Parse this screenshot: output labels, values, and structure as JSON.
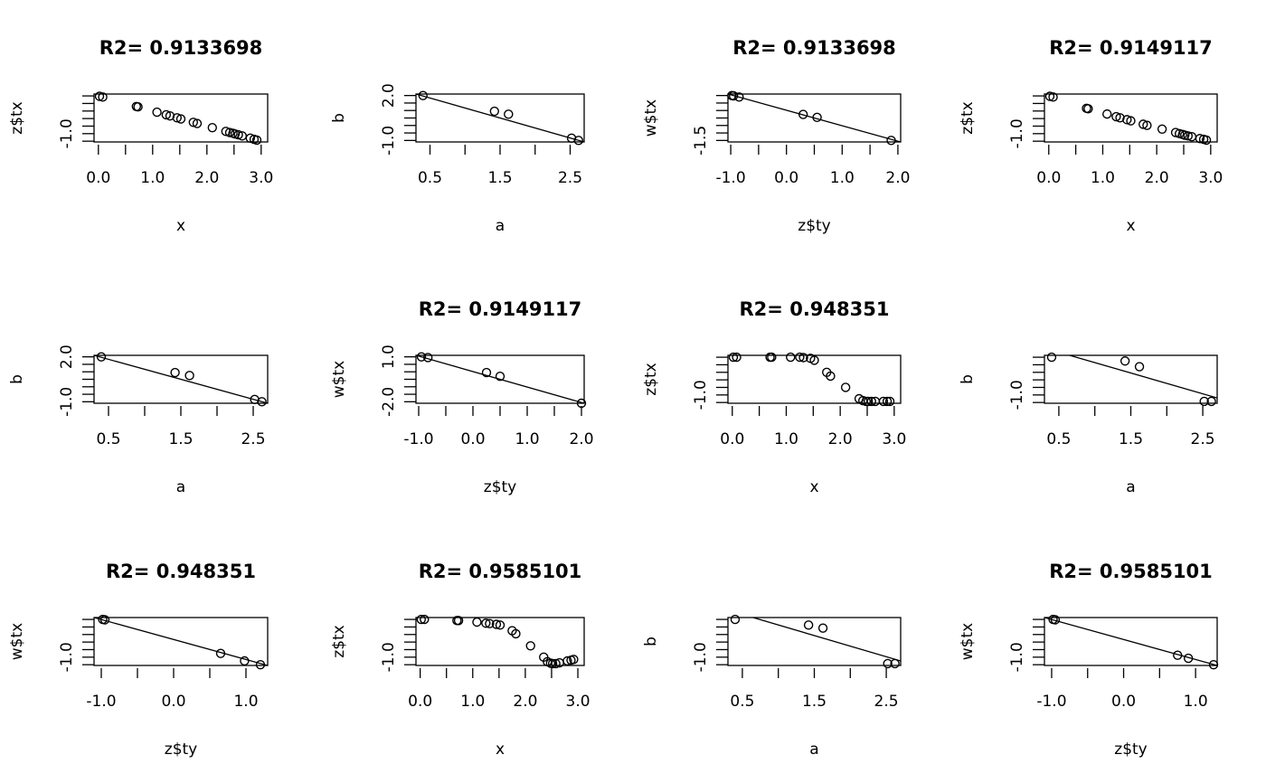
{
  "chart_data": [
    {
      "type": "scatter",
      "title": "R2= 0.9133698",
      "xlabel": "x",
      "ylabel": "z$tx",
      "xlim": [
        -0.08,
        3.12
      ],
      "ylim": [
        -1.22,
        0.05
      ],
      "xticks": [
        0,
        0.5,
        1,
        1.5,
        2,
        2.5,
        3
      ],
      "xtick_labels": {
        "0": "0.0",
        "1": "1.0",
        "2": "2.0",
        "3": "3.0"
      },
      "yticks": [
        -1.2,
        -1.0,
        -0.8,
        -0.6,
        -0.4,
        -0.2,
        0
      ],
      "ytick_labels": {
        "-1": "-1.0"
      },
      "x": [
        0.02,
        0.08,
        0.7,
        0.73,
        1.08,
        1.25,
        1.32,
        1.45,
        1.52,
        1.75,
        1.82,
        2.1,
        2.35,
        2.42,
        2.48,
        2.52,
        2.58,
        2.65,
        2.8,
        2.87,
        2.92
      ],
      "y": [
        -0.01,
        -0.03,
        -0.28,
        -0.29,
        -0.43,
        -0.5,
        -0.53,
        -0.58,
        -0.61,
        -0.7,
        -0.73,
        -0.84,
        -0.94,
        -0.97,
        -0.99,
        -1.01,
        -1.03,
        -1.06,
        -1.12,
        -1.15,
        -1.17
      ],
      "fit_line": null
    },
    {
      "type": "scatter",
      "title": "",
      "xlabel": "a",
      "ylabel": "b",
      "xlim": [
        0.3,
        2.7
      ],
      "ylim": [
        -1.1,
        2.1
      ],
      "xticks": [
        0.5,
        1,
        1.5,
        2,
        2.5
      ],
      "xtick_labels": {
        "0.5": "0.5",
        "1.5": "1.5",
        "2.5": "2.5"
      },
      "yticks": [
        -1,
        -0.5,
        0,
        0.5,
        1,
        1.5,
        2
      ],
      "ytick_labels": {
        "2": "2.0",
        "-1": "-1.0"
      },
      "x": [
        0.4,
        1.42,
        1.62,
        2.52,
        2.62
      ],
      "y": [
        2.0,
        0.95,
        0.75,
        -0.85,
        -1.0
      ],
      "fit_line": [
        [
          0.3,
          2.1
        ],
        [
          2.7,
          -1.1
        ]
      ]
    },
    {
      "type": "scatter",
      "title": "R2= 0.9133698",
      "xlabel": "z$ty",
      "ylabel": "w$tx",
      "xlim": [
        -1.05,
        2.05
      ],
      "ylim": [
        -1.55,
        0.05
      ],
      "xticks": [
        -1,
        -0.5,
        0,
        0.5,
        1,
        1.5,
        2
      ],
      "xtick_labels": {
        "-1": "-1.0",
        "0": "0.0",
        "1": "1.0",
        "2": "2.0"
      },
      "yticks": [
        -1.5,
        -1.25,
        -1,
        -0.75,
        -0.5,
        -0.25,
        0
      ],
      "ytick_labels": {
        "-1.5": "-1.5"
      },
      "x": [
        -0.98,
        -0.95,
        -0.85,
        0.3,
        0.55,
        1.88
      ],
      "y": [
        0.0,
        -0.01,
        -0.05,
        -0.63,
        -0.73,
        -1.5
      ],
      "fit_line": [
        [
          -1.05,
          0.05
        ],
        [
          2.05,
          -1.55
        ]
      ]
    },
    {
      "type": "scatter",
      "title": "R2= 0.9149117",
      "xlabel": "x",
      "ylabel": "z$tx",
      "xlim": [
        -0.08,
        3.12
      ],
      "ylim": [
        -1.22,
        0.05
      ],
      "xticks": [
        0,
        0.5,
        1,
        1.5,
        2,
        2.5,
        3
      ],
      "xtick_labels": {
        "0": "0.0",
        "1": "1.0",
        "2": "2.0",
        "3": "3.0"
      },
      "yticks": [
        -1.2,
        -1.0,
        -0.8,
        -0.6,
        -0.4,
        -0.2,
        0
      ],
      "ytick_labels": {
        "-1": "-1.0"
      },
      "x": [
        0.02,
        0.08,
        0.7,
        0.73,
        1.08,
        1.25,
        1.32,
        1.45,
        1.52,
        1.75,
        1.82,
        2.1,
        2.35,
        2.42,
        2.48,
        2.52,
        2.58,
        2.65,
        2.8,
        2.87,
        2.92
      ],
      "y": [
        -0.01,
        -0.03,
        -0.33,
        -0.34,
        -0.48,
        -0.55,
        -0.58,
        -0.63,
        -0.66,
        -0.75,
        -0.78,
        -0.88,
        -0.97,
        -1.0,
        -1.02,
        -1.04,
        -1.06,
        -1.08,
        -1.13,
        -1.15,
        -1.17
      ],
      "fit_line": null
    },
    {
      "type": "scatter",
      "title": "",
      "xlabel": "a",
      "ylabel": "b",
      "xlim": [
        0.3,
        2.7
      ],
      "ylim": [
        -1.1,
        2.1
      ],
      "xticks": [
        0.5,
        1,
        1.5,
        2,
        2.5
      ],
      "xtick_labels": {
        "0.5": "0.5",
        "1.5": "1.5",
        "2.5": "2.5"
      },
      "yticks": [
        -1,
        -0.5,
        0,
        0.5,
        1,
        1.5,
        2
      ],
      "ytick_labels": {
        "2": "2.0",
        "-1": "-1.0"
      },
      "x": [
        0.4,
        1.42,
        1.62,
        2.52,
        2.62
      ],
      "y": [
        2.0,
        0.95,
        0.75,
        -0.85,
        -1.0
      ],
      "fit_line": [
        [
          0.3,
          2.1
        ],
        [
          2.7,
          -1.1
        ]
      ]
    },
    {
      "type": "scatter",
      "title": "R2= 0.9149117",
      "xlabel": "z$ty",
      "ylabel": "w$tx",
      "xlim": [
        -1.05,
        2.05
      ],
      "ylim": [
        -2.1,
        1.1
      ],
      "xticks": [
        -1,
        -0.5,
        0,
        0.5,
        1,
        1.5,
        2
      ],
      "xtick_labels": {
        "-1": "-1.0",
        "0": "0.0",
        "1": "1.0",
        "2": "2.0"
      },
      "yticks": [
        -2,
        -1.5,
        -1,
        -0.5,
        0,
        0.5,
        1
      ],
      "ytick_labels": {
        "1": "1.0",
        "-2": "-2.0"
      },
      "x": [
        -0.95,
        -0.83,
        0.25,
        0.5,
        2.0
      ],
      "y": [
        1.0,
        0.95,
        -0.05,
        -0.3,
        -2.1
      ],
      "fit_line": [
        [
          -1.05,
          1.1
        ],
        [
          2.05,
          -2.1
        ]
      ]
    },
    {
      "type": "scatter",
      "title": "R2= 0.948351",
      "xlabel": "x",
      "ylabel": "z$tx",
      "xlim": [
        -0.08,
        3.12
      ],
      "ylim": [
        -1.22,
        0.05
      ],
      "xticks": [
        0,
        0.5,
        1,
        1.5,
        2,
        2.5,
        3
      ],
      "xtick_labels": {
        "0": "0.0",
        "1": "1.0",
        "2": "2.0",
        "3": "3.0"
      },
      "yticks": [
        -1.2,
        -1.0,
        -0.8,
        -0.6,
        -0.4,
        -0.2,
        0
      ],
      "ytick_labels": {
        "-1": "-1.0"
      },
      "x": [
        0.02,
        0.08,
        0.7,
        0.73,
        1.08,
        1.25,
        1.32,
        1.45,
        1.52,
        1.75,
        1.82,
        2.1,
        2.35,
        2.42,
        2.48,
        2.52,
        2.58,
        2.65,
        2.8,
        2.87,
        2.92
      ],
      "y": [
        0,
        0,
        0,
        0,
        0,
        0,
        -0.01,
        -0.03,
        -0.08,
        -0.4,
        -0.5,
        -0.8,
        -1.1,
        -1.15,
        -1.17,
        -1.17,
        -1.17,
        -1.17,
        -1.17,
        -1.17,
        -1.17
      ],
      "fit_line": null
    },
    {
      "type": "scatter",
      "title": "",
      "xlabel": "a",
      "ylabel": "b",
      "xlim": [
        0.3,
        2.7
      ],
      "ylim": [
        -1.22,
        0.05
      ],
      "xticks": [
        0.5,
        1,
        1.5,
        2,
        2.5
      ],
      "xtick_labels": {
        "0.5": "0.5",
        "1.5": "1.5",
        "2.5": "2.5"
      },
      "yticks": [
        -1.2,
        -1.0,
        -0.8,
        -0.6,
        -0.4,
        -0.2,
        0
      ],
      "ytick_labels": {
        "-1": "-1.0"
      },
      "x": [
        0.4,
        1.42,
        1.62,
        2.52,
        2.62
      ],
      "y": [
        0,
        -0.1,
        -0.25,
        -1.17,
        -1.17
      ],
      "fit_line": [
        [
          0.65,
          0.05
        ],
        [
          2.7,
          -1.08
        ]
      ]
    },
    {
      "type": "scatter",
      "title": "R2= 0.948351",
      "xlabel": "z$ty",
      "ylabel": "w$tx",
      "xlim": [
        -1.1,
        1.3
      ],
      "ylim": [
        -1.22,
        0.05
      ],
      "xticks": [
        -1,
        -0.5,
        0,
        0.5,
        1
      ],
      "xtick_labels": {
        "-1": "-1.0",
        "0": "0.0",
        "1": "1.0"
      },
      "yticks": [
        -1.2,
        -1.0,
        -0.8,
        -0.6,
        -0.4,
        -0.2,
        0
      ],
      "ytick_labels": {
        "-1": "-1.0"
      },
      "x": [
        -0.98,
        -0.95,
        0.65,
        0.98,
        1.2
      ],
      "y": [
        0,
        -0.01,
        -0.9,
        -1.1,
        -1.2
      ],
      "fit_line": [
        [
          -1.1,
          0.05
        ],
        [
          1.3,
          -1.22
        ]
      ]
    },
    {
      "type": "scatter",
      "title": "R2= 0.9585101",
      "xlabel": "x",
      "ylabel": "z$tx",
      "xlim": [
        -0.08,
        3.12
      ],
      "ylim": [
        -1.22,
        0.05
      ],
      "xticks": [
        0,
        0.5,
        1,
        1.5,
        2,
        2.5,
        3
      ],
      "xtick_labels": {
        "0": "0.0",
        "1": "1.0",
        "2": "2.0",
        "3": "3.0"
      },
      "yticks": [
        -1.2,
        -1.0,
        -0.8,
        -0.6,
        -0.4,
        -0.2,
        0
      ],
      "ytick_labels": {
        "-1": "-1.0"
      },
      "x": [
        0.02,
        0.08,
        0.7,
        0.73,
        1.08,
        1.25,
        1.32,
        1.45,
        1.52,
        1.75,
        1.82,
        2.1,
        2.35,
        2.42,
        2.48,
        2.52,
        2.58,
        2.65,
        2.8,
        2.87,
        2.92
      ],
      "y": [
        0,
        0,
        -0.03,
        -0.03,
        -0.07,
        -0.1,
        -0.11,
        -0.13,
        -0.15,
        -0.3,
        -0.38,
        -0.7,
        -1.0,
        -1.12,
        -1.16,
        -1.17,
        -1.17,
        -1.15,
        -1.1,
        -1.08,
        -1.06
      ],
      "fit_line": null
    },
    {
      "type": "scatter",
      "title": "",
      "xlabel": "a",
      "ylabel": "b",
      "xlim": [
        0.3,
        2.7
      ],
      "ylim": [
        -1.22,
        0.05
      ],
      "xticks": [
        0.5,
        1,
        1.5,
        2,
        2.5
      ],
      "xtick_labels": {
        "0.5": "0.5",
        "1.5": "1.5",
        "2.5": "2.5"
      },
      "yticks": [
        -1.2,
        -1.0,
        -0.8,
        -0.6,
        -0.4,
        -0.2,
        0
      ],
      "ytick_labels": {
        "-1": "-1.0"
      },
      "x": [
        0.4,
        1.42,
        1.62,
        2.52,
        2.62
      ],
      "y": [
        0,
        -0.15,
        -0.23,
        -1.17,
        -1.17
      ],
      "fit_line": [
        [
          0.65,
          0.05
        ],
        [
          2.7,
          -1.1
        ]
      ]
    },
    {
      "type": "scatter",
      "title": "R2= 0.9585101",
      "xlabel": "z$ty",
      "ylabel": "w$tx",
      "xlim": [
        -1.1,
        1.3
      ],
      "ylim": [
        -1.22,
        0.05
      ],
      "xticks": [
        -1,
        -0.5,
        0,
        0.5,
        1
      ],
      "xtick_labels": {
        "-1": "-1.0",
        "0": "0.0",
        "1": "1.0"
      },
      "yticks": [
        -1.2,
        -1.0,
        -0.8,
        -0.6,
        -0.4,
        -0.2,
        0
      ],
      "ytick_labels": {
        "-1": "-1.0"
      },
      "x": [
        -0.98,
        -0.95,
        0.75,
        0.9,
        1.25
      ],
      "y": [
        0,
        -0.01,
        -0.95,
        -1.03,
        -1.2
      ],
      "fit_line": [
        [
          -1.1,
          0.05
        ],
        [
          1.3,
          -1.22
        ]
      ]
    }
  ]
}
